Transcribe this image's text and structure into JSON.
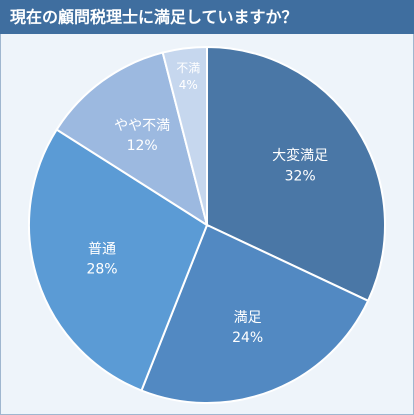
{
  "chart_data": {
    "type": "pie",
    "title": "現在の顧問税理士に満足していますか？",
    "categories": [
      "大変満足",
      "満足",
      "普通",
      "やや不満",
      "不満"
    ],
    "values": [
      32,
      24,
      28,
      12,
      4
    ],
    "value_labels": [
      "32%",
      "24%",
      "28%",
      "12%",
      "4%"
    ],
    "colors": [
      "#4a77a6",
      "#5289c2",
      "#5b9bd5",
      "#9cb9e0",
      "#c6d7ee"
    ]
  }
}
